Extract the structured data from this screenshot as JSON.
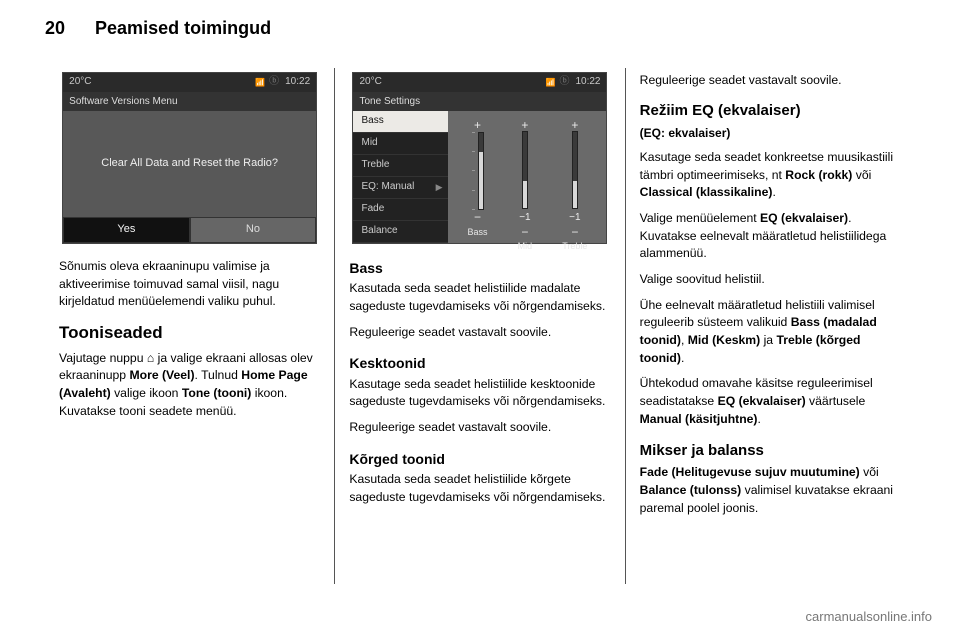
{
  "header": {
    "page_number": "20",
    "title": "Peamised toimingud"
  },
  "col1": {
    "screenshot": {
      "topbar": {
        "temp": "20°C",
        "time": "10:22"
      },
      "subbar": "Software Versions Menu",
      "message": "Clear All Data and Reset the Radio?",
      "yes": "Yes",
      "no": "No"
    },
    "p1": "Sõnumis oleva ekraaninupu valimise ja aktiveerimise toimuvad samal viisil, nagu kirjeldatud menüüelemendi valiku puhul.",
    "h1": "Tooniseaded",
    "p2_a": "Vajutage nuppu ",
    "p2_home": "⌂",
    "p2_b": " ja valige ekraani allosas olev ekraaninupp ",
    "p2_more": "More (Veel)",
    "p2_c": ". Tulnud ",
    "p2_homepage": "Home Page (Avaleht)",
    "p2_d": " valige ikoon ",
    "p2_tone": "Tone (tooni)",
    "p2_e": " ikoon. Kuvatakse tooni seadete menüü."
  },
  "col2": {
    "screenshot": {
      "topbar": {
        "temp": "20°C",
        "time": "10:22"
      },
      "subbar": "Tone Settings",
      "list": {
        "bass": "Bass",
        "mid": "Mid",
        "treble": "Treble",
        "eq": "EQ: Manual",
        "fade": "Fade",
        "balance": "Balance"
      },
      "labels": {
        "bass": "Bass",
        "mid": "Mid",
        "treble": "Treble"
      },
      "slider_values": {
        "bass": 0.75,
        "mid": 0.35,
        "treble": 0.35
      },
      "minus1": "−1"
    },
    "h_bass": "Bass",
    "p_bass": "Kasutada seda seadet helistiilide madalate sageduste tugevdamiseks või nõrgendamiseks.",
    "p_reg": "Reguleerige seadet vastavalt soovile.",
    "h_mid": "Kesktoonid",
    "p_mid": "Kasutage seda seadet helistiilide kesktoonide sageduste tugevdamiseks või nõrgendamiseks.",
    "h_treble": "Kõrged toonid",
    "p_treble": "Kasutada seda seadet helistiilide kõrgete sageduste tugevdamiseks või nõrgendamiseks."
  },
  "col3": {
    "p_reg_top": "Reguleerige seadet vastavalt soovile.",
    "h_eq": "Režiim EQ (ekvalaiser)",
    "h_eq_sub": "(EQ: ekvalaiser)",
    "p_eq1_a": "Kasutage seda seadet konkreetse muusikastiili tämbri optimeerimiseks, nt ",
    "p_eq1_rock": "Rock (rokk)",
    "p_eq1_b": " või ",
    "p_eq1_classical": "Classical (klassikaline)",
    "p_eq1_c": ".",
    "p_eq2_a": "Valige menüüelement ",
    "p_eq2_eq": "EQ (ekvalaiser)",
    "p_eq2_b": ". Kuvatakse eelnevalt määratletud helistiilidega alammenüü.",
    "p_eq3": "Valige soovitud helistiil.",
    "p_eq4_a": "Ühe eelnevalt määratletud helistiili valimisel reguleerib süsteem valikuid ",
    "p_eq4_bass": "Bass (madalad toonid)",
    "p_eq4_b": ", ",
    "p_eq4_mid": "Mid (Keskm)",
    "p_eq4_c": " ja ",
    "p_eq4_treble": "Treble (kõrged toonid)",
    "p_eq4_d": ".",
    "p_eq5_a": "Ühtekodud omavahe käsitse reguleerimisel seadistatakse ",
    "p_eq5_eq": "EQ (ekvalaiser)",
    "p_eq5_b": " väärtusele ",
    "p_eq5_manual": "Manual (käsitjuhtne)",
    "p_eq5_c": ".",
    "h_mb": "Mikser ja balanss",
    "p_mb_a": "",
    "p_mb_fade": "Fade (Helitugevuse sujuv muutumine)",
    "p_mb_b": " või ",
    "p_mb_balance": "Balance (tulonss)",
    "p_mb_c": " valimisel kuvatakse ekraani paremal poolel joonis."
  },
  "watermark": "carmanualsonline.info"
}
